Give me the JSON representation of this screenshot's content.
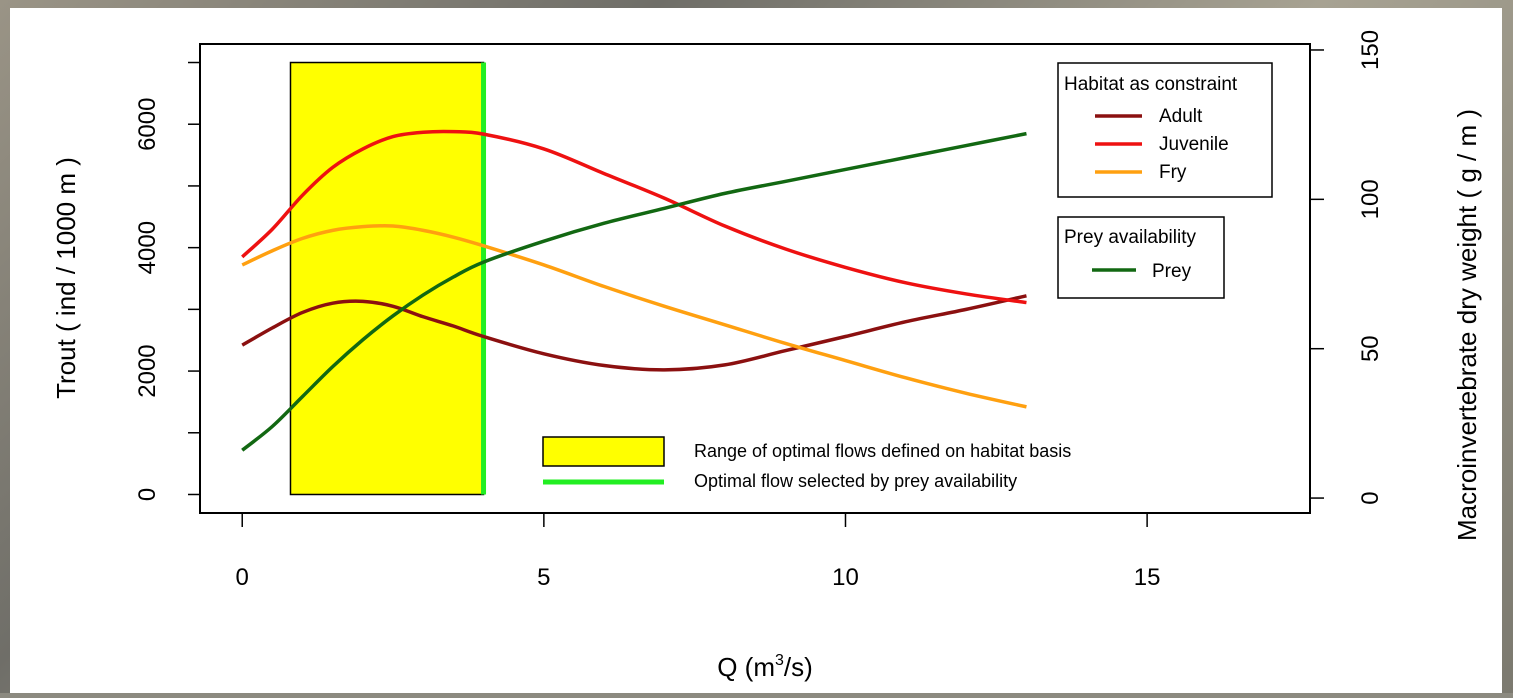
{
  "chart_data": {
    "type": "line",
    "xlabel": "Q (m³/s)",
    "ylabel_left": "Trout ( ind / 1000 m )",
    "ylabel_right": "Macroinvertebrate dry weight ( g / m )",
    "xlim": [
      -0.7,
      17.7
    ],
    "ylim_left": [
      -300,
      7300
    ],
    "ylim_right": [
      -5,
      152
    ],
    "x_ticks": [
      0,
      5,
      10,
      15
    ],
    "y_ticks_left": [
      0,
      2000,
      4000,
      6000
    ],
    "y_ticks_right": [
      0,
      50,
      100,
      150
    ],
    "grid": false,
    "optimal_range": [
      0.8,
      4.0
    ],
    "optimal_range_top": 7000,
    "optimal_flow": 4.0,
    "optimal_flow_color": "#22ee22",
    "range_color": "#ffff00",
    "x": [
      0,
      0.5,
      1,
      1.5,
      2,
      2.5,
      3,
      3.5,
      4,
      5,
      6,
      7,
      8,
      9,
      10,
      11,
      12,
      13
    ],
    "series": [
      {
        "name": "Adult",
        "axis": "left",
        "color": "#8b1010",
        "values": [
          2420,
          2700,
          2950,
          3100,
          3130,
          3050,
          2880,
          2730,
          2560,
          2280,
          2090,
          2020,
          2100,
          2330,
          2560,
          2800,
          3000,
          3220
        ]
      },
      {
        "name": "Juvenile",
        "axis": "left",
        "color": "#ee1111",
        "values": [
          3850,
          4300,
          4850,
          5300,
          5600,
          5800,
          5870,
          5880,
          5840,
          5600,
          5200,
          4800,
          4350,
          3980,
          3680,
          3430,
          3250,
          3110
        ]
      },
      {
        "name": "Fry",
        "axis": "left",
        "color": "#ffa010",
        "values": [
          3720,
          3950,
          4150,
          4280,
          4340,
          4350,
          4280,
          4170,
          4030,
          3720,
          3370,
          3050,
          2750,
          2450,
          2170,
          1890,
          1640,
          1420
        ]
      },
      {
        "name": "Prey",
        "axis": "right",
        "color": "#126812",
        "values": [
          16,
          24,
          34,
          44,
          53,
          61,
          68,
          74,
          79,
          86,
          92,
          97,
          102,
          106,
          110,
          114,
          118,
          122
        ]
      }
    ],
    "legend_habitat": {
      "title": "Habitat as constraint",
      "items": [
        "Adult",
        "Juvenile",
        "Fry"
      ]
    },
    "legend_prey": {
      "title": "Prey availability",
      "items": [
        "Prey"
      ]
    },
    "legend_bottom": {
      "range": "Range of optimal flows defined on habitat basis",
      "flow": "Optimal flow selected by prey availability"
    }
  }
}
